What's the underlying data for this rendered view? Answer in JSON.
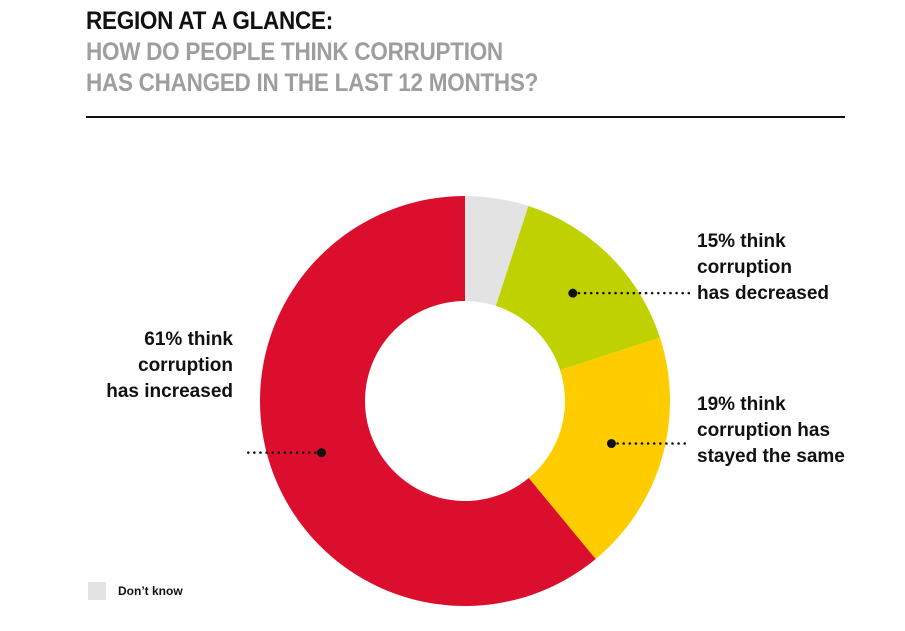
{
  "header": {
    "title": "REGION AT A GLANCE:",
    "subtitle_line1": "HOW DO PEOPLE THINK CORRUPTION",
    "subtitle_line2": "HAS CHANGED IN THE LAST 12 MONTHS?"
  },
  "chart_data": {
    "type": "pie",
    "donut": true,
    "categories": [
      "Don't know",
      "Decreased",
      "Stayed the same",
      "Increased"
    ],
    "values": [
      5,
      15,
      19,
      61
    ],
    "colors": [
      "#e3e3e3",
      "#bfd200",
      "#ffcc00",
      "#dc0e2d"
    ],
    "annotations": {
      "increased": "61% think\ncorruption\nhas increased",
      "decreased": "15% think\ncorruption\nhas decreased",
      "same": "19% think\ncorruption has\nstayed the same"
    },
    "legend": [
      {
        "label": "Don’t know",
        "color": "#e3e3e3"
      }
    ],
    "legend_placement": "bottom-left"
  }
}
